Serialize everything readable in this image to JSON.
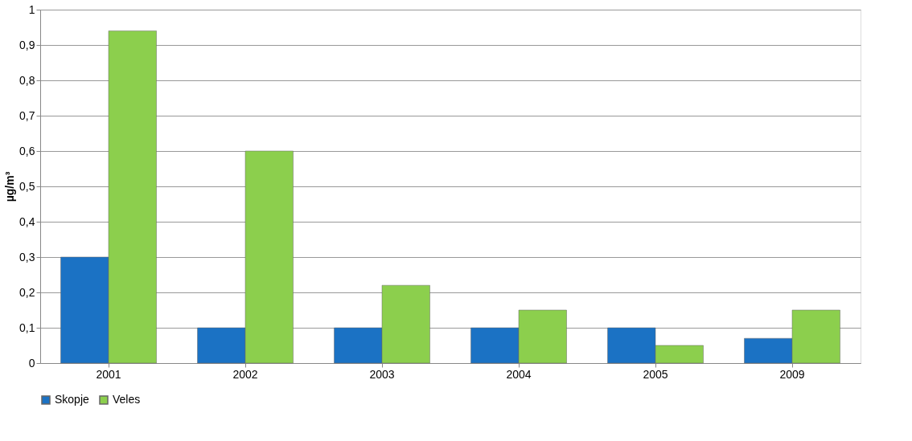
{
  "chart_data": {
    "type": "bar",
    "ylabel": "µg/m³",
    "categories": [
      "2001",
      "2002",
      "2003",
      "2004",
      "2005",
      "2009"
    ],
    "series": [
      {
        "name": "Skopje",
        "color": "#1b72c4",
        "values": [
          0.3,
          0.1,
          0.1,
          0.1,
          0.1,
          0.07
        ]
      },
      {
        "name": "Veles",
        "color": "#8ccf4d",
        "values": [
          0.94,
          0.6,
          0.22,
          0.15,
          0.05,
          0.15
        ]
      }
    ],
    "ylim": [
      0,
      1
    ],
    "yticks": [
      0,
      {
        "value": 0.1,
        "label": "0,1"
      },
      {
        "value": 0.2,
        "label": "0,2"
      },
      {
        "value": 0.3,
        "label": "0,3"
      },
      {
        "value": 0.4,
        "label": "0,4"
      },
      {
        "value": 0.5,
        "label": "0,5"
      },
      {
        "value": 0.6,
        "label": "0,6"
      },
      {
        "value": 0.7,
        "label": "0,7"
      },
      {
        "value": 0.8,
        "label": "0,8"
      },
      {
        "value": 0.9,
        "label": "0,9"
      },
      1
    ],
    "grid": "y",
    "legend": "bottom"
  }
}
